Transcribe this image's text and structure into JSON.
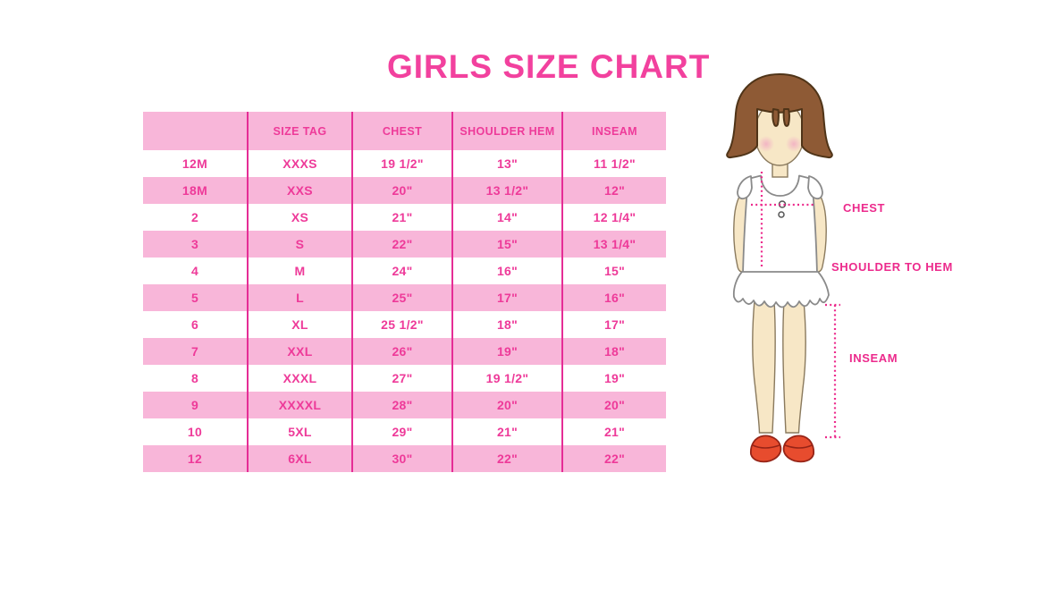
{
  "page": {
    "background": "#FFFFFF"
  },
  "colors": {
    "page_bg": "#FFFFFF",
    "title_pink": "#F2419E",
    "row_pink": "#F8B6D9",
    "text_pink": "#EE3A99",
    "divider_pink": "#E52D96",
    "measure_magenta": "#EC2A8C",
    "hair_brown": "#8E5A35",
    "skin": "#F7E7C6",
    "blush": "#F2AFC4",
    "shoe_red": "#E74C2E",
    "outline_gray": "#8A8A8A"
  },
  "chart_data": {
    "type": "table",
    "title": "GIRLS SIZE CHART",
    "columns": [
      "",
      "SIZE TAG",
      "CHEST",
      "SHOULDER HEM",
      "INSEAM"
    ],
    "rows": [
      [
        "12M",
        "XXXS",
        "19 1/2\"",
        "13\"",
        "11 1/2\""
      ],
      [
        "18M",
        "XXS",
        "20\"",
        "13 1/2\"",
        "12\""
      ],
      [
        "2",
        "XS",
        "21\"",
        "14\"",
        "12 1/4\""
      ],
      [
        "3",
        "S",
        "22\"",
        "15\"",
        "13 1/4\""
      ],
      [
        "4",
        "M",
        "24\"",
        "16\"",
        "15\""
      ],
      [
        "5",
        "L",
        "25\"",
        "17\"",
        "16\""
      ],
      [
        "6",
        "XL",
        "25 1/2\"",
        "18\"",
        "17\""
      ],
      [
        "7",
        "XXL",
        "26\"",
        "19\"",
        "18\""
      ],
      [
        "8",
        "XXXL",
        "27\"",
        "19 1/2\"",
        "19\""
      ],
      [
        "9",
        "XXXXL",
        "28\"",
        "20\"",
        "20\""
      ],
      [
        "10",
        "5XL",
        "29\"",
        "21\"",
        "21\""
      ],
      [
        "12",
        "6XL",
        "30\"",
        "22\"",
        "22\""
      ]
    ]
  },
  "figure": {
    "labels": {
      "chest": "CHEST",
      "shoulder_to_hem": "SHOULDER TO HEM",
      "inseam": "INSEAM"
    }
  }
}
